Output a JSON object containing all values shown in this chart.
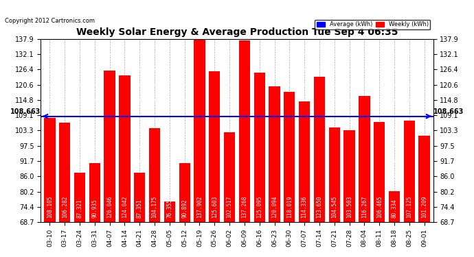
{
  "title": "Weekly Solar Energy & Average Production Tue Sep 4 06:35",
  "copyright": "Copyright 2012 Cartronics.com",
  "categories": [
    "03-10",
    "03-17",
    "03-24",
    "03-31",
    "04-07",
    "04-14",
    "04-21",
    "04-28",
    "05-05",
    "05-12",
    "05-19",
    "05-26",
    "06-02",
    "06-09",
    "06-16",
    "06-23",
    "06-30",
    "07-07",
    "07-14",
    "07-21",
    "07-28",
    "08-04",
    "08-11",
    "08-18",
    "08-25",
    "09-01"
  ],
  "values": [
    108.105,
    106.282,
    87.321,
    90.935,
    126.046,
    124.042,
    87.351,
    104.175,
    76.355,
    90.892,
    137.902,
    125.603,
    102.517,
    137.268,
    125.095,
    120.094,
    118.019,
    114.336,
    123.65,
    104.545,
    103.503,
    116.267,
    106.465,
    80.334,
    107.125,
    101.209
  ],
  "average": 108.663,
  "bar_color": "#ff0000",
  "average_line_color": "#0000ff",
  "background_color": "#ffffff",
  "plot_bg_color": "#ffffff",
  "grid_color": "#aaaaaa",
  "ylim_min": 68.7,
  "ylim_max": 137.9,
  "yticks": [
    68.7,
    74.4,
    80.2,
    86.0,
    91.7,
    97.5,
    103.3,
    109.1,
    114.8,
    120.6,
    126.4,
    132.1,
    137.9
  ],
  "legend_avg_color": "#0000ff",
  "legend_weekly_color": "#ff0000",
  "value_label_color": "#ffffff",
  "value_label_fontsize": 5.5
}
